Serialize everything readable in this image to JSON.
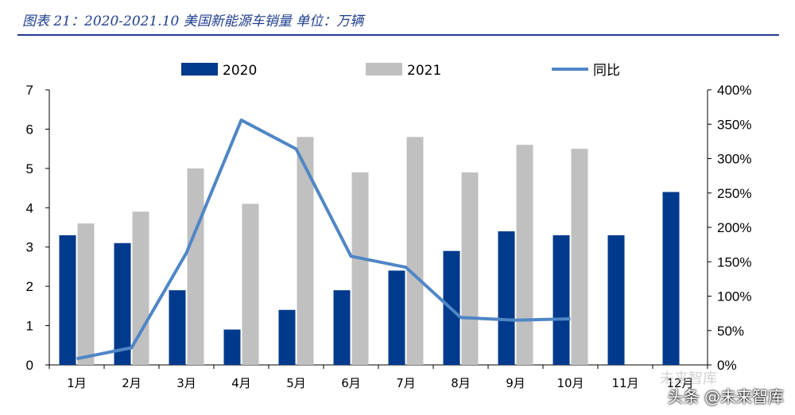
{
  "title": "图表 21：2020-2021.10 美国新能源车销量 单位：万辆",
  "chart_data": {
    "type": "bar",
    "categories": [
      "1月",
      "2月",
      "3月",
      "4月",
      "5月",
      "6月",
      "7月",
      "8月",
      "9月",
      "10月",
      "11月",
      "12月"
    ],
    "series": [
      {
        "name": "2020",
        "type": "bar",
        "axis": "left",
        "color": "#003a8c",
        "values": [
          3.3,
          3.1,
          1.9,
          0.9,
          1.4,
          1.9,
          2.4,
          2.9,
          3.4,
          3.3,
          3.3,
          4.4
        ]
      },
      {
        "name": "2021",
        "type": "bar",
        "axis": "left",
        "color": "#c0c0c0",
        "values": [
          3.6,
          3.9,
          5.0,
          4.1,
          5.8,
          4.9,
          5.8,
          4.9,
          5.6,
          5.5,
          null,
          null
        ]
      },
      {
        "name": "同比",
        "type": "line",
        "axis": "right",
        "color": "#4f86c6",
        "values": [
          0.09,
          0.25,
          1.63,
          3.56,
          3.14,
          1.58,
          1.42,
          0.69,
          0.65,
          0.67,
          null,
          null
        ]
      }
    ],
    "left_axis": {
      "ylim": [
        0,
        7
      ],
      "ticks": [
        "0",
        "1",
        "2",
        "3",
        "4",
        "5",
        "6",
        "7"
      ]
    },
    "right_axis": {
      "ylim": [
        0,
        4
      ],
      "ticks": [
        "0%",
        "50%",
        "100%",
        "150%",
        "200%",
        "250%",
        "300%",
        "350%",
        "400%"
      ]
    },
    "legend": {
      "placement": "top"
    },
    "grid": false
  },
  "watermark": "头条 @未来智库",
  "watermark_faint": "未来智库"
}
